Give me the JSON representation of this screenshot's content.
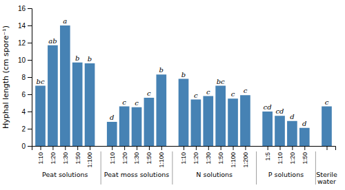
{
  "chart_data": {
    "type": "bar",
    "ylabel": "Hyphal length (cm spore⁻¹)",
    "ylim": [
      0,
      16
    ],
    "yticks": [
      0,
      2,
      4,
      6,
      8,
      10,
      12,
      14,
      16
    ],
    "grid": false,
    "groups": [
      {
        "name": "Peat solutions",
        "categories": [
          "1:10",
          "1:20",
          "1:30",
          "1:50",
          "1:100"
        ],
        "values": [
          7.0,
          11.7,
          14.0,
          9.7,
          9.6
        ],
        "letters": [
          "bc",
          "ab",
          "a",
          "b",
          "b"
        ]
      },
      {
        "name": "Peat moss solutions",
        "categories": [
          "1:10",
          "1:20",
          "1:30",
          "1:50",
          "1:100"
        ],
        "values": [
          2.8,
          4.6,
          4.5,
          5.6,
          8.3
        ],
        "letters": [
          "d",
          "c",
          "c",
          "c",
          "b"
        ]
      },
      {
        "name": "N solutions",
        "categories": [
          "1:10",
          "1:20",
          "1:30",
          "1:50",
          "1:100",
          "1:200"
        ],
        "values": [
          7.8,
          5.4,
          5.8,
          7.0,
          5.5,
          5.9
        ],
        "letters": [
          "b",
          "c",
          "c",
          "bc",
          "c",
          "c"
        ]
      },
      {
        "name": "P solutions",
        "categories": [
          "1:5",
          "1:10",
          "1:20",
          "1:50"
        ],
        "values": [
          4.0,
          3.5,
          2.9,
          2.1
        ],
        "letters": [
          "cd",
          "cd",
          "d",
          "d"
        ]
      },
      {
        "name": "Sterile\nwater",
        "categories": [
          null
        ],
        "values": [
          4.6
        ],
        "letters": [
          "c"
        ]
      }
    ]
  }
}
